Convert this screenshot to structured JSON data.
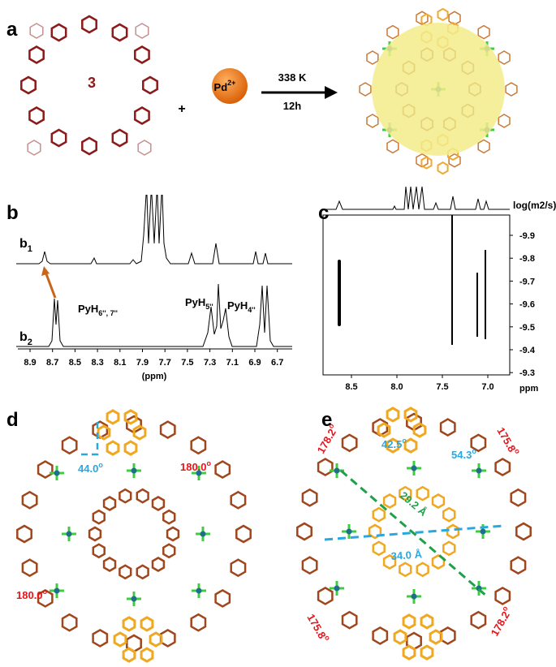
{
  "panels": {
    "a": {
      "label": "a",
      "compound": "3",
      "plus": "+",
      "reagent": "Pd",
      "reagent_charge": "2+",
      "condition_temp": "338 K",
      "condition_time": "12h"
    },
    "b": {
      "label": "b",
      "trace_top": {
        "text": "b",
        "sub": "1"
      },
      "trace_bottom": {
        "text": "b",
        "sub": "2"
      },
      "peak_labels": [
        {
          "text": "PyH",
          "sub": "6'', 7''"
        },
        {
          "text": "PyH",
          "sub": "5''"
        },
        {
          "text": "PyH",
          "sub": "4''"
        }
      ],
      "xticks": [
        "8.9",
        "8.7",
        "8.5",
        "8.3",
        "8.1",
        "7.9",
        "7.7",
        "7.5",
        "7.3",
        "7.1",
        "6.9",
        "6.7"
      ],
      "xlabel": "(ppm)"
    },
    "c": {
      "label": "c",
      "ylabel": "log(m2/s)",
      "yticks": [
        "-9.9",
        "-9.8",
        "-9.7",
        "-9.6",
        "-9.5",
        "-9.4",
        "-9.3"
      ],
      "xticks": [
        "8.5",
        "8.0",
        "7.5",
        "7.0"
      ],
      "xlabel": "ppm"
    },
    "d": {
      "label": "d",
      "angles": [
        {
          "value": "44.0",
          "unit": "o"
        },
        {
          "value": "180.0",
          "unit": "o"
        },
        {
          "value": "180.0",
          "unit": "o"
        }
      ]
    },
    "e": {
      "label": "e",
      "angles": [
        {
          "value": "178.2",
          "unit": "o"
        },
        {
          "value": "42.5",
          "unit": "o"
        },
        {
          "value": "54.3",
          "unit": "o"
        },
        {
          "value": "175.8",
          "unit": "o"
        },
        {
          "value": "175.8",
          "unit": "o"
        },
        {
          "value": "178.2",
          "unit": "o"
        }
      ],
      "distances": [
        "29.2 Å",
        "34.0 Å"
      ]
    }
  }
}
